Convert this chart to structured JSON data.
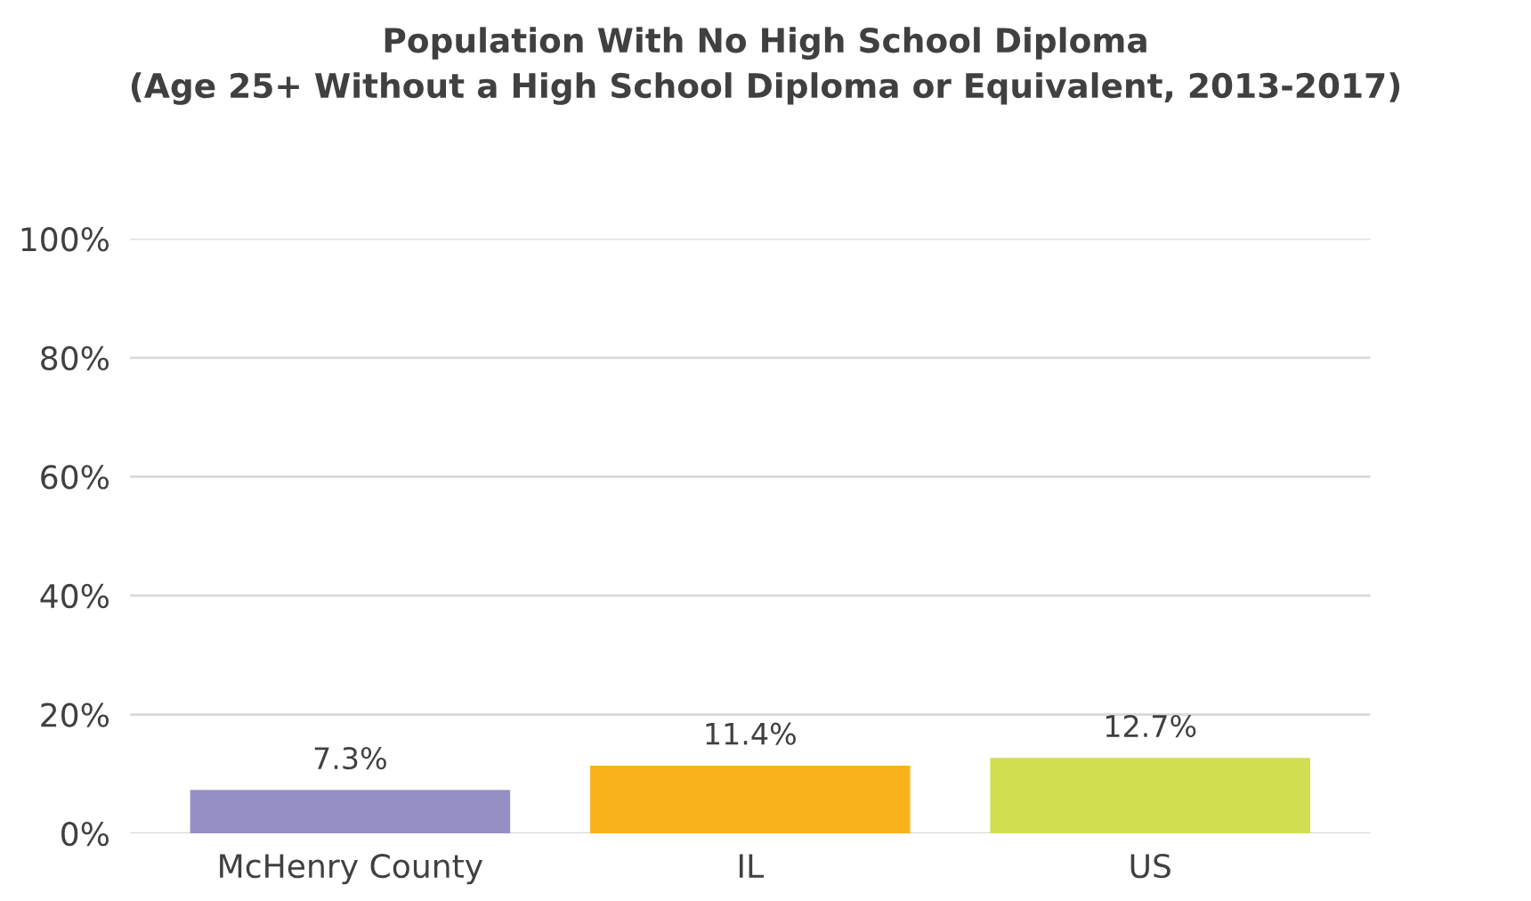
{
  "chart_data": {
    "type": "bar",
    "title": "Population With No High School Diploma\n(Age 25+ Without a High School Diploma or Equivalent, 2013-2017)",
    "categories": [
      "McHenry County",
      "IL",
      "US"
    ],
    "values": [
      7.3,
      11.4,
      12.7
    ],
    "colors": [
      "#9590c4",
      "#f9b21b",
      "#d0de4f"
    ],
    "value_labels": [
      "7.3%",
      "11.4%",
      "12.7%"
    ],
    "ylim": [
      0,
      100
    ],
    "yticks": [
      {
        "value": 0,
        "label": "0%"
      },
      {
        "value": 20,
        "label": "20%"
      },
      {
        "value": 40,
        "label": "40%"
      },
      {
        "value": 60,
        "label": "60%"
      },
      {
        "value": 80,
        "label": "80%"
      },
      {
        "value": 100,
        "label": "100%"
      }
    ],
    "grid": "y"
  }
}
